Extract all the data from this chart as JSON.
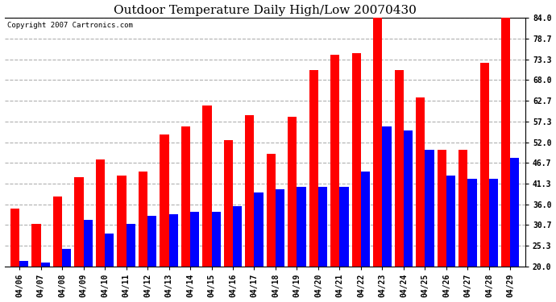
{
  "title": "Outdoor Temperature Daily High/Low 20070430",
  "copyright": "Copyright 2007 Cartronics.com",
  "dates": [
    "04/06",
    "04/07",
    "04/08",
    "04/09",
    "04/10",
    "04/11",
    "04/12",
    "04/13",
    "04/14",
    "04/15",
    "04/16",
    "04/17",
    "04/18",
    "04/19",
    "04/20",
    "04/21",
    "04/22",
    "04/23",
    "04/24",
    "04/25",
    "04/26",
    "04/27",
    "04/28",
    "04/29"
  ],
  "highs": [
    35.0,
    31.0,
    38.0,
    43.0,
    47.5,
    43.5,
    44.5,
    54.0,
    56.0,
    61.5,
    52.5,
    59.0,
    49.0,
    58.5,
    70.5,
    74.5,
    75.0,
    84.5,
    70.5,
    63.5,
    50.0,
    50.0,
    72.5,
    84.0
  ],
  "lows": [
    21.5,
    21.0,
    24.5,
    32.0,
    28.5,
    31.0,
    33.0,
    33.5,
    34.0,
    34.0,
    35.5,
    39.0,
    40.0,
    40.5,
    40.5,
    40.5,
    44.5,
    56.0,
    55.0,
    50.0,
    43.5,
    42.5,
    42.5,
    48.0
  ],
  "high_color": "#ff0000",
  "low_color": "#0000ff",
  "bg_color": "#ffffff",
  "grid_color": "#b0b0b0",
  "yticks": [
    20.0,
    25.3,
    30.7,
    36.0,
    41.3,
    46.7,
    52.0,
    57.3,
    62.7,
    68.0,
    73.3,
    78.7,
    84.0
  ],
  "ymin": 20.0,
  "ymax": 84.0,
  "bar_width": 0.42,
  "title_fontsize": 11,
  "tick_fontsize": 7,
  "copyright_fontsize": 6.5
}
